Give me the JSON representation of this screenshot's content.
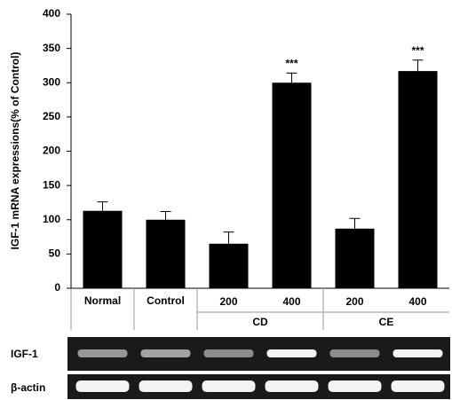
{
  "chart_data": {
    "type": "bar",
    "y_label": "IGF-1 mRNA expressions(% of Control)",
    "categories": [
      "Normal",
      "Control",
      "200",
      "400",
      "200",
      "400"
    ],
    "groups": [
      "CD",
      "CE"
    ],
    "group_of": [
      null,
      null,
      0,
      0,
      1,
      1
    ],
    "values": [
      113,
      100,
      65,
      300,
      87,
      317
    ],
    "errors": [
      13,
      12,
      17,
      14,
      15,
      16
    ],
    "significance": [
      null,
      null,
      null,
      "***",
      null,
      "***"
    ],
    "color": "#000000",
    "ylim": [
      0,
      400
    ],
    "yticks": [
      0,
      50,
      100,
      150,
      200,
      250,
      300,
      350,
      400
    ],
    "grid": false
  },
  "gel": {
    "rows": [
      "IGF-1",
      "β-actin"
    ]
  }
}
